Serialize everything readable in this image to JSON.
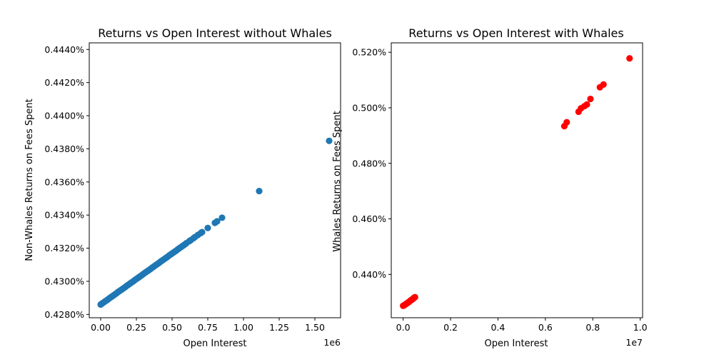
{
  "chart_data": [
    {
      "type": "scatter",
      "title": "Returns vs Open Interest without Whales",
      "xlabel": "Open Interest",
      "ylabel": "Non-Whales Returns on Fees Spent",
      "x_offset_label": "1e6",
      "xlim": [
        -0.08,
        1.68
      ],
      "ylim": [
        0.4278,
        0.4444
      ],
      "x_ticks": [
        0.0,
        0.25,
        0.5,
        0.75,
        1.0,
        1.25,
        1.5
      ],
      "x_tick_labels": [
        "0.00",
        "0.25",
        "0.50",
        "0.75",
        "1.00",
        "1.25",
        "1.50"
      ],
      "y_ticks": [
        0.428,
        0.43,
        0.432,
        0.434,
        0.436,
        0.438,
        0.44,
        0.442,
        0.444
      ],
      "y_tick_labels": [
        "0.4280%",
        "0.4300%",
        "0.4320%",
        "0.4340%",
        "0.4360%",
        "0.4380%",
        "0.4400%",
        "0.4420%",
        "0.4440%"
      ],
      "color": "#1f77b4",
      "grid": false,
      "series": [
        {
          "x": [
            0.0,
            0.005,
            0.01,
            0.02,
            0.03,
            0.04,
            0.05,
            0.06,
            0.07,
            0.08,
            0.09,
            0.1,
            0.11,
            0.12,
            0.13,
            0.14,
            0.15,
            0.16,
            0.17,
            0.18,
            0.19,
            0.2,
            0.21,
            0.22,
            0.23,
            0.24,
            0.25,
            0.26,
            0.27,
            0.28,
            0.29,
            0.3,
            0.31,
            0.32,
            0.33,
            0.34,
            0.35,
            0.36,
            0.37,
            0.38,
            0.39,
            0.4,
            0.41,
            0.42,
            0.43,
            0.44,
            0.45,
            0.46,
            0.47,
            0.48,
            0.49,
            0.5,
            0.51,
            0.52,
            0.53,
            0.54,
            0.55,
            0.56,
            0.57,
            0.58,
            0.59,
            0.6,
            0.62,
            0.63,
            0.65,
            0.66,
            0.68,
            0.7,
            0.71,
            0.75,
            0.8,
            0.815,
            0.85,
            1.11,
            1.6
          ],
          "y": [
            0.4286,
            0.42863,
            0.42866,
            0.42872,
            0.42878,
            0.42884,
            0.4289,
            0.42897,
            0.42903,
            0.42909,
            0.42915,
            0.42921,
            0.42927,
            0.42934,
            0.4294,
            0.42946,
            0.42952,
            0.42958,
            0.42964,
            0.42971,
            0.42977,
            0.42983,
            0.42989,
            0.42995,
            0.43001,
            0.43008,
            0.43014,
            0.4302,
            0.43026,
            0.43032,
            0.43038,
            0.43045,
            0.43051,
            0.43057,
            0.43063,
            0.43069,
            0.43075,
            0.43082,
            0.43088,
            0.43094,
            0.431,
            0.43106,
            0.43112,
            0.43119,
            0.43125,
            0.43131,
            0.43137,
            0.43143,
            0.43149,
            0.43156,
            0.43162,
            0.43168,
            0.43174,
            0.4318,
            0.43186,
            0.43193,
            0.43199,
            0.43205,
            0.43211,
            0.43217,
            0.43223,
            0.4323,
            0.43242,
            0.43248,
            0.4326,
            0.43267,
            0.43279,
            0.43291,
            0.43297,
            0.43322,
            0.43353,
            0.43362,
            0.43384,
            0.43545,
            0.43848
          ]
        }
      ]
    },
    {
      "type": "scatter",
      "title": "Returns vs Open Interest with Whales",
      "xlabel": "Open Interest",
      "ylabel": "Whales Returns on Fees Spent",
      "x_offset_label": "1e7",
      "xlim": [
        -0.05,
        1.01
      ],
      "ylim": [
        0.4244,
        0.5234
      ],
      "x_ticks": [
        0.0,
        0.2,
        0.4,
        0.6,
        0.8,
        1.0
      ],
      "x_tick_labels": [
        "0.0",
        "0.2",
        "0.4",
        "0.6",
        "0.8",
        "1.0"
      ],
      "y_ticks": [
        0.44,
        0.46,
        0.48,
        0.5,
        0.52
      ],
      "y_tick_labels": [
        "0.440%",
        "0.460%",
        "0.480%",
        "0.500%",
        "0.520%"
      ],
      "color": "#ff0000",
      "grid": false,
      "series": [
        {
          "x": [
            0.0,
            0.003,
            0.006,
            0.01,
            0.013,
            0.016,
            0.02,
            0.023,
            0.026,
            0.03,
            0.033,
            0.036,
            0.04,
            0.043,
            0.046,
            0.05,
            0.68,
            0.69,
            0.74,
            0.75,
            0.765,
            0.775,
            0.79,
            0.83,
            0.845,
            0.955
          ],
          "y": [
            0.4287,
            0.4288,
            0.429,
            0.4292,
            0.4294,
            0.4296,
            0.4298,
            0.43,
            0.4302,
            0.4305,
            0.4307,
            0.4309,
            0.4311,
            0.4313,
            0.4316,
            0.4318,
            0.4934,
            0.4948,
            0.4986,
            0.4998,
            0.5006,
            0.5012,
            0.5032,
            0.5074,
            0.5084,
            0.5178
          ]
        }
      ]
    }
  ]
}
